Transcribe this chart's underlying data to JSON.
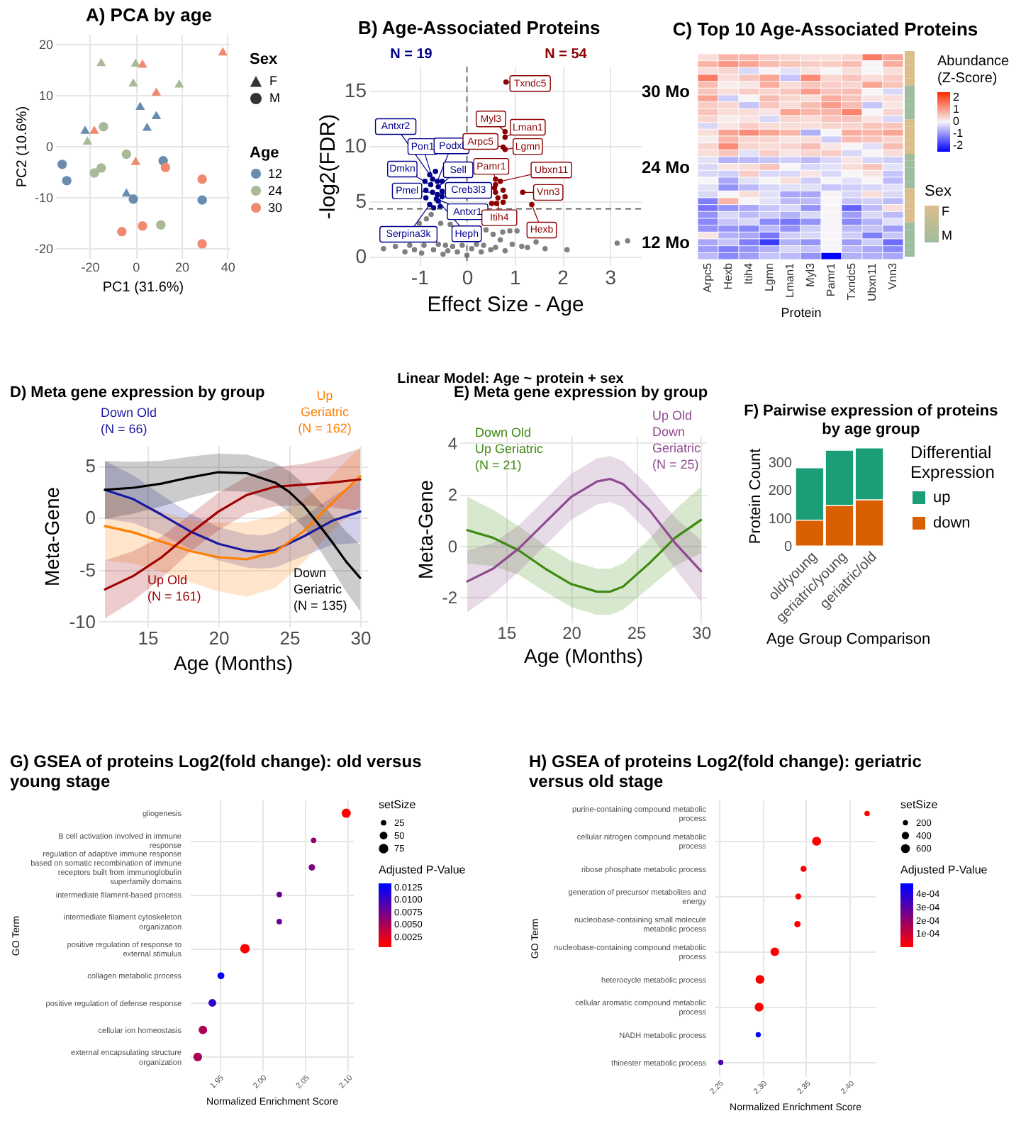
{
  "chart_data": [
    {
      "type": "scatter",
      "title": "A) PCA by age",
      "xlabel": "PC1 (31.6%)",
      "ylabel": "PC2 (10.6%)",
      "xlim": [
        -35,
        41
      ],
      "ylim": [
        -22,
        22
      ],
      "xticks": [
        -20,
        0,
        20,
        40
      ],
      "yticks": [
        -20,
        -10,
        0,
        10,
        20
      ],
      "grid": true,
      "legend": "right",
      "legend_title": "Age",
      "annotations": [
        "Sex",
        "F",
        "M"
      ],
      "series": [
        {
          "color": "#6a8caf",
          "marker": "triangle",
          "x": [
            2,
            9,
            5,
            -22,
            -4
          ],
          "values": [
            7.9,
            6.1,
            3.8,
            3.2,
            -9.1
          ]
        },
        {
          "color": "#a9ba98",
          "marker": "triangle",
          "x": [
            -15,
            0,
            -1,
            19,
            -21
          ],
          "values": [
            16.5,
            16.4,
            12.5,
            12.3,
            1.1
          ]
        },
        {
          "color": "#ef8a6f",
          "marker": "triangle",
          "x": [
            38,
            3,
            9,
            -18,
            0
          ],
          "values": [
            18.6,
            16.2,
            10.7,
            3.2,
            -2.9
          ]
        },
        {
          "name": "12",
          "color": "#6a8caf",
          "marker": "circle",
          "x": [
            12,
            -32,
            -30,
            -1,
            29
          ],
          "values": [
            -2.9,
            -3.6,
            -6.8,
            -10.4,
            -10.6
          ]
        },
        {
          "name": "24",
          "color": "#a9ba98",
          "marker": "circle",
          "x": [
            -14,
            -4,
            -15,
            -18,
            11
          ],
          "values": [
            3.8,
            -1.6,
            -4.3,
            -5.3,
            -15.5
          ]
        },
        {
          "name": "30",
          "color": "#ef8a6f",
          "marker": "circle",
          "x": [
            13,
            29,
            3,
            -6,
            29
          ],
          "values": [
            -4.2,
            -6.5,
            -15.7,
            -16.8,
            -19.2
          ]
        }
      ]
    },
    {
      "type": "scatter",
      "title": "B) Age-Associated Proteins",
      "xlabel": "Effect Size - Age",
      "ylabel": "-log2(FDR)",
      "xlim": [
        -2.06,
        3.65
      ],
      "ylim": [
        -0.8,
        17.2
      ],
      "xticks": [
        -1,
        0,
        1,
        2,
        3
      ],
      "yticks": [
        0,
        5,
        10,
        15
      ],
      "grid": true,
      "marker": "circle",
      "series": [
        {
          "color": "#808080",
          "x": [
            -1.75,
            -1.5,
            -1.3,
            -1.2,
            -1.1,
            -1.0,
            -0.95,
            -0.9,
            -0.85,
            -0.75,
            -0.7,
            -0.6,
            -0.55,
            -0.5,
            -0.45,
            -0.4,
            -0.35,
            -0.3,
            -0.2,
            -0.1,
            0,
            0.1,
            0.2,
            0.3,
            0.35,
            0.4,
            0.5,
            0.55,
            0.6,
            0.7,
            0.75,
            0.8,
            0.9,
            0.95,
            1.05,
            1.15,
            1.27,
            1.45,
            1.64,
            2.1,
            3.15,
            3.37
          ],
          "values": [
            0.7,
            0.9,
            0.4,
            1.0,
            0.6,
            3.0,
            0.3,
            1.0,
            3.4,
            3.8,
            0.6,
            1.1,
            3.0,
            0.2,
            1.0,
            0.5,
            2.9,
            0.9,
            0.4,
            1.0,
            0.1,
            0.7,
            1.1,
            0.4,
            1.0,
            2.4,
            0.6,
            2.0,
            0.8,
            1.5,
            2.2,
            0.5,
            2.3,
            1.1,
            2.3,
            0.9,
            0.8,
            1.3,
            0.7,
            0.6,
            1.2,
            1.4
          ]
        },
        {
          "name": "N = 19",
          "color": "#00008b",
          "x": [
            -0.78,
            -0.72,
            -0.62,
            -0.76,
            -0.6,
            -0.72,
            -0.62,
            -0.64,
            -0.78,
            -0.6,
            -0.86,
            -0.66,
            -0.86,
            -0.52,
            -0.52,
            -0.7,
            -0.56,
            -0.88,
            -0.52
          ],
          "values": [
            7.4,
            7.0,
            6.8,
            6.5,
            6.3,
            5.8,
            5.6,
            5.2,
            4.7,
            5.0,
            6.0,
            7.7,
            5.3,
            5.9,
            6.8,
            4.4,
            4.5,
            6.8,
            5.4
          ]
        },
        {
          "name": "N = 54",
          "color": "#8b0000",
          "x": [
            0.82,
            0.8,
            0.76,
            0.8,
            0.8,
            0.6,
            0.7,
            1.17,
            0.65,
            1.36,
            0.52,
            0.6,
            0.6,
            0.58,
            0.62,
            0.76,
            0.76,
            0.8
          ],
          "values": [
            15.8,
            11.3,
            9.9,
            10.8,
            9.7,
            7.0,
            6.8,
            5.8,
            5.3,
            4.7,
            4.8,
            5.8,
            6.5,
            6.2,
            4.8,
            4.9,
            6.0,
            5.4
          ]
        }
      ],
      "ref_lines": [
        {
          "axis": "x",
          "value": 0,
          "line_style": "dashed"
        },
        {
          "axis": "y",
          "value": 4.3,
          "line_style": "dashed"
        }
      ],
      "annotations": [
        {
          "text": "Antxr2",
          "x": -0.78,
          "y": 7.4
        },
        {
          "text": "Pon1",
          "x": -0.72,
          "y": 7.0
        },
        {
          "text": "Podxl",
          "x": -0.62,
          "y": 6.8
        },
        {
          "text": "Dmkn",
          "x": -0.76,
          "y": 6.5
        },
        {
          "text": "Sell",
          "x": -0.6,
          "y": 6.3
        },
        {
          "text": "Pmel",
          "x": -0.72,
          "y": 5.8
        },
        {
          "text": "Creb3l3",
          "x": -0.62,
          "y": 5.6
        },
        {
          "text": "Antxr1",
          "x": -0.64,
          "y": 5.2
        },
        {
          "text": "Serpina3k",
          "x": -0.78,
          "y": 4.7
        },
        {
          "text": "Heph",
          "x": -0.6,
          "y": 5.0
        },
        {
          "text": "Txndc5",
          "x": 0.82,
          "y": 15.8
        },
        {
          "text": "Myl3",
          "x": 0.8,
          "y": 11.3
        },
        {
          "text": "Arpc5",
          "x": 0.76,
          "y": 9.9
        },
        {
          "text": "Lman1",
          "x": 0.8,
          "y": 10.8
        },
        {
          "text": "Lgmn",
          "x": 0.8,
          "y": 9.7
        },
        {
          "text": "Pamr1",
          "x": 0.6,
          "y": 7.0
        },
        {
          "text": "Ubxn11",
          "x": 0.7,
          "y": 6.8
        },
        {
          "text": "Vnn3",
          "x": 1.17,
          "y": 5.8
        },
        {
          "text": "Itih4",
          "x": 0.65,
          "y": 5.3
        },
        {
          "text": "Hexb",
          "x": 1.36,
          "y": 4.7
        },
        "Linear Model: Age ~ protein + sex"
      ]
    },
    {
      "type": "heatmap",
      "title": "C) Top 10 Age-Associated Proteins",
      "xlabel": "Protein",
      "clabel": "Abundance (Z-Score)",
      "clim": [
        -2.5,
        2.5
      ],
      "cticks": [
        -2,
        -1,
        0,
        1,
        2
      ],
      "colors": [
        "#0000ff",
        "#f7f5f7",
        "#ff2a00"
      ],
      "categories": [
        "Arpc5",
        "Hexb",
        "Itih4",
        "Lgmn",
        "Lman1",
        "Myl3",
        "Pamr1",
        "Txndc5",
        "Ubxn11",
        "Vnn3"
      ],
      "y_categories": [
        null,
        null,
        null,
        null,
        null,
        "30 Mo",
        null,
        null,
        null,
        null,
        null,
        null,
        null,
        null,
        null,
        null,
        "24 Mo",
        null,
        null,
        null,
        null,
        null,
        null,
        null,
        null,
        null,
        null,
        "12 Mo",
        null,
        null
      ],
      "cells": [
        [
          0.3,
          0.8,
          0.8,
          0.5,
          0.4,
          0.3,
          0.3,
          0.4,
          1.5,
          1.0
        ],
        [
          0.8,
          1.2,
          1.0,
          0.7,
          0.6,
          0.5,
          0.5,
          0.7,
          0,
          0.9
        ],
        [
          0.3,
          0.4,
          -0.3,
          0,
          -0.2,
          0.2,
          0,
          0.3,
          0,
          0.3
        ],
        [
          1.5,
          0.3,
          0.6,
          1.0,
          -0.5,
          1.3,
          0.4,
          0.6,
          0.3,
          0.5
        ],
        [
          0.7,
          0.1,
          0.2,
          0.9,
          0.3,
          0.6,
          0.5,
          0.4,
          1.0,
          0.6
        ],
        [
          0.6,
          0.3,
          0.5,
          0.4,
          0.6,
          1.1,
          0.6,
          0.7,
          0,
          -0.3
        ],
        [
          1.0,
          -0.4,
          0,
          0.7,
          0.4,
          0.3,
          0.9,
          0.6,
          0.2,
          0.3
        ],
        [
          0.5,
          0.4,
          -0.5,
          0.6,
          0.3,
          0.7,
          1.1,
          0.7,
          -0.5,
          0.2
        ],
        [
          0.6,
          0.3,
          0.3,
          0.2,
          1.0,
          0.8,
          0.8,
          1.4,
          0,
          0.4
        ],
        [
          0.4,
          0.1,
          0.2,
          -0.3,
          0.4,
          0.3,
          0.6,
          0.6,
          0.2,
          -0.3
        ],
        [
          -0.3,
          0.2,
          0.5,
          0.3,
          0.3,
          0.3,
          0.4,
          0.4,
          0.6,
          0.6
        ],
        [
          0.3,
          1.0,
          1.3,
          1.0,
          0.8,
          -0.7,
          0,
          0.9,
          0.8,
          1.0
        ],
        [
          0.1,
          0.8,
          0.4,
          0.4,
          0.2,
          0.3,
          -0.4,
          0.7,
          0.6,
          0.4
        ],
        [
          0.4,
          1.3,
          0.4,
          0.3,
          0.4,
          0.7,
          0.2,
          0,
          -0.2,
          0.7
        ],
        [
          0.3,
          0.6,
          -0.2,
          0.5,
          0.2,
          0.4,
          0.5,
          -0.3,
          0,
          0.3
        ],
        [
          -0.2,
          -0.7,
          -0.6,
          -0.5,
          -0.4,
          -0.6,
          -0.3,
          0.2,
          -0.3,
          -0.4
        ],
        [
          -0.3,
          0.2,
          0.3,
          0.6,
          0,
          -0.3,
          -0.2,
          0.3,
          0.6,
          -0.2
        ],
        [
          -0.3,
          -0.4,
          0.5,
          -0.3,
          -0.3,
          0.2,
          -0.3,
          0,
          0.2,
          -0.5
        ],
        [
          0,
          -0.8,
          -0.2,
          0,
          0.3,
          -0.4,
          0,
          -0.2,
          0,
          -0.6
        ],
        [
          -0.2,
          -1.0,
          -0.6,
          -0.3,
          -0.2,
          -0.2,
          -0.5,
          -0.4,
          -0.3,
          -0.2
        ],
        [
          -0.3,
          0,
          0.3,
          -0.2,
          -0.8,
          -0.8,
          0,
          -0.3,
          0.3,
          -0.3
        ],
        [
          -1.2,
          0.8,
          0,
          -0.2,
          -0.6,
          -0.6,
          0,
          -0.5,
          -0.4,
          -0.6
        ],
        [
          -1.3,
          -1.0,
          -0.8,
          -0.5,
          -0.3,
          -1.0,
          0,
          -1.5,
          -0.6,
          0.3
        ],
        [
          -1.0,
          -0.3,
          -0.6,
          -0.4,
          -0.7,
          -0.3,
          0,
          -0.9,
          -0.3,
          -0.6
        ],
        [
          -1.1,
          -0.5,
          -0.3,
          -1.1,
          -1.3,
          -1.0,
          0,
          -1.1,
          -0.7,
          -0.2
        ],
        [
          -1.0,
          -1.0,
          -1.1,
          -0.6,
          -1.0,
          -0.4,
          0,
          -0.6,
          -0.5,
          -0.9
        ],
        [
          0.2,
          -0.7,
          -0.8,
          -1.3,
          -0.4,
          -0.3,
          0,
          -0.4,
          -1.2,
          -0.5
        ],
        [
          -0.8,
          -0.5,
          -1.2,
          -1.9,
          -0.7,
          -1.0,
          0,
          -0.9,
          -0.4,
          -1.4
        ],
        [
          -0.9,
          -1.2,
          -1.0,
          -0.7,
          -0.3,
          -0.5,
          0,
          -0.6,
          -0.8,
          -1.1
        ],
        [
          -0.6,
          -1.1,
          -0.9,
          -0.5,
          -0.6,
          -1.0,
          -2.5,
          -0.7,
          -0.7,
          -0.8
        ]
      ]
    },
    {
      "type": "heatmap",
      "clabel": "Sex",
      "clim": [
        0,
        1
      ],
      "cticks": [
        {
          "value": 0,
          "label": "M"
        },
        {
          "value": 1,
          "label": "F"
        }
      ],
      "colors": [
        "#9fbd9f",
        "#dcbd8c"
      ],
      "categories": [
        null
      ],
      "y_categories": [
        null,
        null,
        null,
        null,
        null,
        null,
        null,
        null,
        null,
        null,
        null,
        null,
        null,
        null,
        null,
        null,
        null,
        null,
        null,
        null,
        null,
        null,
        null,
        null,
        null,
        null,
        null,
        null,
        null,
        null
      ],
      "cells": [
        [
          1
        ],
        [
          1
        ],
        [
          1
        ],
        [
          1
        ],
        [
          1
        ],
        [
          0
        ],
        [
          0
        ],
        [
          0
        ],
        [
          0
        ],
        [
          0
        ],
        [
          1
        ],
        [
          1
        ],
        [
          1
        ],
        [
          1
        ],
        [
          1
        ],
        [
          0
        ],
        [
          0
        ],
        [
          0
        ],
        [
          0
        ],
        [
          0
        ],
        [
          1
        ],
        [
          1
        ],
        [
          1
        ],
        [
          1
        ],
        [
          1
        ],
        [
          0
        ],
        [
          0
        ],
        [
          0
        ],
        [
          0
        ],
        [
          0
        ]
      ]
    },
    {
      "type": "line",
      "title": "D) Meta gene expression by group",
      "xlabel": "Age (Months)",
      "ylabel": "Meta-Gene",
      "xlim": [
        11.5,
        30.5
      ],
      "ylim": [
        -10.5,
        7
      ],
      "xticks": [
        15,
        20,
        25,
        30
      ],
      "yticks": [
        -10,
        -5,
        0,
        5
      ],
      "grid": true,
      "series": [
        {
          "name": "Down Old (N = 66)",
          "color": "#1a1aa0",
          "x": [
            12,
            14,
            16,
            18,
            20,
            22,
            23,
            24,
            26,
            28,
            30
          ],
          "values": [
            2.7,
            1.8,
            0.3,
            -1.3,
            -2.5,
            -3.2,
            -3.3,
            -3.1,
            -1.8,
            -0.3,
            0.6
          ],
          "lower": [
            -0.1,
            -0.5,
            -1.6,
            -3.0,
            -4.1,
            -4.8,
            -4.9,
            -4.8,
            -3.7,
            -2.6,
            -2.4
          ],
          "upper": [
            5.5,
            4.1,
            2.2,
            0.4,
            -0.9,
            -1.6,
            -1.7,
            -1.4,
            0.1,
            2.0,
            3.6
          ]
        },
        {
          "name": "Up Geriatric (N = 162)",
          "color": "#ff7f00",
          "x": [
            12,
            14,
            16,
            18,
            20,
            22,
            24,
            26,
            28,
            30
          ],
          "values": [
            -0.8,
            -1.4,
            -2.3,
            -3.2,
            -3.8,
            -4.0,
            -3.3,
            -1.3,
            1.4,
            4.0
          ],
          "lower": [
            -4.1,
            -4.4,
            -5.2,
            -6.2,
            -7.1,
            -7.6,
            -6.8,
            -4.3,
            -1.3,
            1.2
          ],
          "upper": [
            2.5,
            1.6,
            0.6,
            -0.2,
            -0.5,
            -0.4,
            0.2,
            1.7,
            4.1,
            6.8
          ]
        },
        {
          "name": "Up Old (N = 161)",
          "color": "#a00000",
          "x": [
            12,
            14,
            16,
            18,
            20,
            22,
            24,
            26,
            28,
            30
          ],
          "values": [
            -6.9,
            -5.6,
            -3.8,
            -1.5,
            0.6,
            2.2,
            3.0,
            3.2,
            3.4,
            3.7
          ],
          "lower": [
            -9.7,
            -8.0,
            -5.8,
            -3.3,
            -1.2,
            0.4,
            1.1,
            1.2,
            1.0,
            0.7
          ],
          "upper": [
            -4.1,
            -3.2,
            -1.8,
            0.3,
            2.4,
            4.0,
            4.9,
            5.2,
            5.8,
            6.7
          ]
        },
        {
          "name": "Down Geriatric (N = 135)",
          "color": "#000000",
          "x": [
            12,
            14,
            16,
            18,
            20,
            22,
            24,
            25,
            26,
            27,
            28,
            29,
            30
          ],
          "values": [
            2.7,
            2.9,
            3.3,
            3.9,
            4.4,
            4.3,
            3.4,
            2.5,
            1.2,
            -0.5,
            -2.3,
            -4.2,
            -5.8
          ],
          "lower": [
            -0.1,
            0.4,
            1.1,
            1.9,
            2.6,
            2.5,
            1.5,
            0.5,
            -0.9,
            -2.8,
            -4.9,
            -7.1,
            -9.0
          ],
          "upper": [
            5.5,
            5.4,
            5.5,
            5.9,
            6.2,
            6.1,
            5.3,
            4.5,
            3.3,
            1.8,
            0.3,
            -1.3,
            -2.6
          ]
        }
      ]
    },
    {
      "type": "line",
      "title": "E) Meta gene expression by group",
      "xlabel": "Age (Months)",
      "ylabel": "Meta-Gene",
      "xlim": [
        11.4,
        30.4
      ],
      "ylim": [
        -3,
        4.3
      ],
      "xticks": [
        15,
        20,
        25,
        30
      ],
      "yticks": [
        -2,
        0,
        2,
        4
      ],
      "grid": true,
      "series": [
        {
          "name": "Down Old Up Geriatric (N = 21)",
          "color": "#3d8a10",
          "x": [
            12,
            14,
            16,
            18,
            20,
            22,
            23,
            24,
            26,
            28,
            30
          ],
          "values": [
            0.6,
            0.3,
            -0.2,
            -0.9,
            -1.5,
            -1.8,
            -1.8,
            -1.6,
            -0.7,
            0.3,
            1.0
          ],
          "lower": [
            -0.7,
            -0.8,
            -1.15,
            -1.8,
            -2.4,
            -2.7,
            -2.7,
            -2.5,
            -1.65,
            -0.8,
            -0.3
          ],
          "upper": [
            1.9,
            1.4,
            0.75,
            0,
            -0.6,
            -0.9,
            -0.9,
            -0.7,
            0.25,
            1.4,
            2.3
          ]
        },
        {
          "name": "Up Old Down Geriatric (N = 25)",
          "color": "#8e4a8e",
          "x": [
            12,
            14,
            16,
            18,
            20,
            22,
            23,
            24,
            26,
            28,
            30
          ],
          "values": [
            -1.4,
            -0.9,
            -0.1,
            0.9,
            1.9,
            2.5,
            2.6,
            2.4,
            1.4,
            0.1,
            -1.0
          ],
          "lower": [
            -2.6,
            -1.9,
            -1.0,
            0,
            1.0,
            1.6,
            1.7,
            1.5,
            0.5,
            -0.9,
            -2.2
          ],
          "upper": [
            -0.2,
            0.1,
            0.8,
            1.8,
            2.8,
            3.4,
            3.5,
            3.3,
            2.3,
            1.1,
            0.2
          ]
        }
      ]
    },
    {
      "type": "bar",
      "title": "F) Pairwise expression of proteins by age group",
      "xlabel": "Age Group Comparison",
      "ylabel": "Protein Count",
      "ylim": [
        0,
        360
      ],
      "yticks": [
        0,
        100,
        200,
        300
      ],
      "stacked": true,
      "legend": "right",
      "legend_title": "Differential Expression",
      "categories": [
        "old/young",
        "geriatric/young",
        "geriatric/old"
      ],
      "series": [
        {
          "name": "down",
          "color": "#d95f02",
          "values": [
            92,
            145,
            165
          ]
        },
        {
          "name": "up",
          "color": "#1b9e77",
          "values": [
            187,
            197,
            185
          ]
        }
      ]
    },
    {
      "type": "bubble",
      "orientation": "horizontal",
      "title": "G) GSEA of proteins Log2(fold change): old versus young stage",
      "xlabel": "Normalized Enrichment Score",
      "ylabel": "GO Term",
      "clabel": "Adjusted P-Value",
      "legend_title": "setSize",
      "grid": true,
      "xlim": [
        1.916,
        2.106
      ],
      "clim": [
        0.0005,
        0.0133
      ],
      "xticks": [
        {
          "value": 1.95,
          "label": "1.95"
        },
        {
          "value": 2.0,
          "label": "2.00"
        },
        {
          "value": 2.05,
          "label": "2.05"
        },
        {
          "value": 2.1,
          "label": "2.10"
        }
      ],
      "cticks": [
        {
          "value": 0.0025,
          "label": "0.0025"
        },
        {
          "value": 0.005,
          "label": "0.0050"
        },
        {
          "value": 0.0075,
          "label": "0.0075"
        },
        {
          "value": 0.01,
          "label": "0.0100"
        },
        {
          "value": 0.0125,
          "label": "0.0125"
        }
      ],
      "size_legend": [
        25,
        50,
        75
      ],
      "categories": [
        "gliogenesis",
        "B cell activation involved in immune response",
        "regulation of adaptive immune response based on somatic recombination of immune receptors built from immunoglobulin superfamily domains",
        "intermediate filament-based process",
        "intermediate filament cytoskeleton organization",
        "positive regulation of response to external stimulus",
        "collagen metabolic process",
        "positive regulation of defense response",
        "cellular ion homeostasis",
        "external encapsulating structure organization"
      ],
      "values": [
        2.098,
        2.06,
        2.058,
        2.02,
        2.02,
        1.98,
        1.952,
        1.942,
        1.931,
        1.925
      ],
      "sizes": [
        70,
        25,
        35,
        25,
        25,
        75,
        40,
        50,
        60,
        62
      ],
      "cvalues": [
        0.001,
        0.006,
        0.007,
        0.008,
        0.008,
        0.001,
        0.0128,
        0.0105,
        0.005,
        0.005
      ],
      "colors": [
        "#ff0000",
        "#93006c",
        "#7d0082",
        "#680097",
        "#680097",
        "#ff0000",
        "#0000ff",
        "#3200cd",
        "#a90056",
        "#a90056"
      ]
    },
    {
      "type": "bubble",
      "orientation": "horizontal",
      "title": "H) GSEA of proteins Log2(fold change): geriatric versus old stage",
      "xlabel": "Normalized Enrichment Score",
      "ylabel": "GO Term",
      "clabel": "Adjusted P-Value",
      "legend_title": "setSize",
      "grid": true,
      "xlim": [
        2.245,
        2.429
      ],
      "clim": [
        0,
        0.00048
      ],
      "xticks": [
        {
          "value": 2.25,
          "label": "2.25"
        },
        {
          "value": 2.3,
          "label": "2.30"
        },
        {
          "value": 2.35,
          "label": "2.35"
        },
        {
          "value": 2.4,
          "label": "2.40"
        }
      ],
      "cticks": [
        {
          "value": 0.0001,
          "label": "1e-04"
        },
        {
          "value": 0.0002,
          "label": "2e-04"
        },
        {
          "value": 0.0003,
          "label": "3e-04"
        },
        {
          "value": 0.0004,
          "label": "4e-04"
        }
      ],
      "size_legend": [
        200,
        400,
        600
      ],
      "categories": [
        "purine-containing compound metabolic process",
        "cellular nitrogen compound metabolic process",
        "ribose phosphate metabolic process",
        "generation of precursor metabolites and energy",
        "nucleobase-containing small molecule metabolic process",
        "nucleobase-containing compound metabolic process",
        "heterocycle metabolic process",
        "cellular aromatic compound metabolic process",
        "NADH metabolic process",
        "thioester metabolic process"
      ],
      "values": [
        2.42,
        2.362,
        2.347,
        2.341,
        2.34,
        2.314,
        2.297,
        2.296,
        2.295,
        2.252
      ],
      "sizes": [
        220,
        600,
        270,
        260,
        300,
        560,
        580,
        580,
        200,
        200
      ],
      "cvalues": [
        1e-05,
        1e-05,
        1e-05,
        1e-05,
        1e-05,
        1e-05,
        1e-05,
        1e-05,
        0.00046,
        0.00032
      ],
      "colors": [
        "#ff0000",
        "#ff0000",
        "#ff0000",
        "#ff0000",
        "#ff0000",
        "#ff0000",
        "#ff0000",
        "#ff0000",
        "#0000ff",
        "#4f00b0"
      ]
    }
  ]
}
